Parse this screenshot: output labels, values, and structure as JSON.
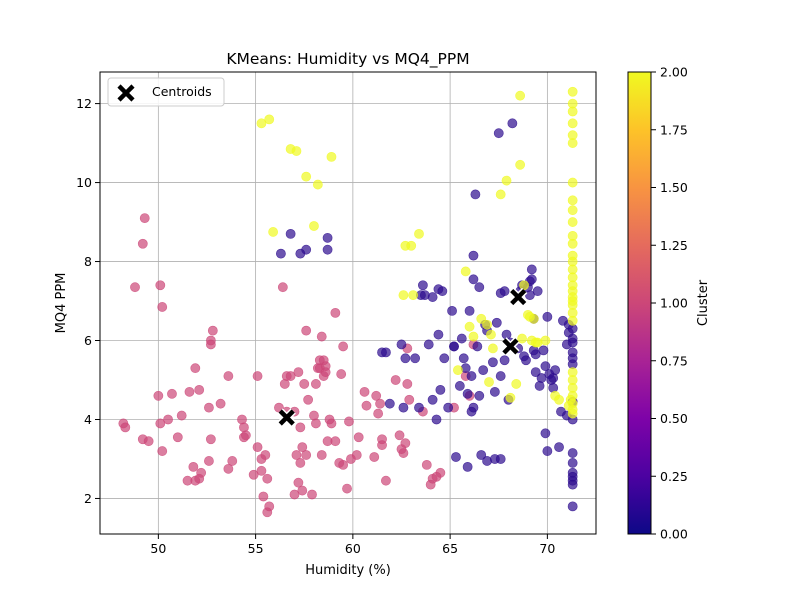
{
  "chart_data": {
    "type": "scatter",
    "title": "KMeans: Humidity vs MQ4_PPM",
    "xlabel": "Humidity (%)",
    "ylabel": "MQ4 PPM",
    "xlim": [
      47,
      72.5
    ],
    "ylim": [
      1.1,
      12.8
    ],
    "xticks": [
      50,
      55,
      60,
      65,
      70
    ],
    "yticks": [
      2,
      4,
      6,
      8,
      10,
      12
    ],
    "grid": true,
    "legend": {
      "position": "top-left",
      "entries": [
        "Centroids"
      ]
    },
    "colorbar": {
      "label": "Cluster",
      "range": [
        0,
        2
      ],
      "ticks": [
        "0.00",
        "0.25",
        "0.50",
        "0.75",
        "1.00",
        "1.25",
        "1.50",
        "1.75",
        "2.00"
      ],
      "colormap": "plasma"
    },
    "cluster_colors": {
      "0": "#2d0d8f",
      "1": "#cc4778",
      "2": "#f0f921"
    },
    "centroids": [
      [
        68.5,
        7.1
      ],
      [
        68.1,
        5.85
      ],
      [
        56.6,
        4.05
      ]
    ],
    "clusters": [
      {
        "cluster": 1,
        "points": [
          [
            48.2,
            3.9
          ],
          [
            48.3,
            3.8
          ],
          [
            48.8,
            7.35
          ],
          [
            49.2,
            3.5
          ],
          [
            49.2,
            8.45
          ],
          [
            49.3,
            9.1
          ],
          [
            49.5,
            3.45
          ],
          [
            50.0,
            4.6
          ],
          [
            50.1,
            3.9
          ],
          [
            50.1,
            7.4
          ],
          [
            50.2,
            6.85
          ],
          [
            50.2,
            3.2
          ],
          [
            50.5,
            4.0
          ],
          [
            50.7,
            4.65
          ],
          [
            51.0,
            3.55
          ],
          [
            51.2,
            4.1
          ],
          [
            51.5,
            2.45
          ],
          [
            51.6,
            4.7
          ],
          [
            51.8,
            2.8
          ],
          [
            51.9,
            5.3
          ],
          [
            51.9,
            2.45
          ],
          [
            52.1,
            4.75
          ],
          [
            52.1,
            2.5
          ],
          [
            52.2,
            2.65
          ],
          [
            52.6,
            4.3
          ],
          [
            52.6,
            2.95
          ],
          [
            52.7,
            5.9
          ],
          [
            52.7,
            6.0
          ],
          [
            52.7,
            3.5
          ],
          [
            52.8,
            6.25
          ],
          [
            53.2,
            4.4
          ],
          [
            53.6,
            2.75
          ],
          [
            53.6,
            5.1
          ],
          [
            53.8,
            2.95
          ],
          [
            54.3,
            4.0
          ],
          [
            54.4,
            3.55
          ],
          [
            54.4,
            3.8
          ],
          [
            54.5,
            3.6
          ],
          [
            54.9,
            2.6
          ],
          [
            55.1,
            3.3
          ],
          [
            55.1,
            5.1
          ],
          [
            55.3,
            2.7
          ],
          [
            55.3,
            3.0
          ],
          [
            55.4,
            2.05
          ],
          [
            55.5,
            3.1
          ],
          [
            55.6,
            2.5
          ],
          [
            55.6,
            1.65
          ],
          [
            55.7,
            1.8
          ],
          [
            56.2,
            4.3
          ],
          [
            56.4,
            7.35
          ],
          [
            56.5,
            4.9
          ],
          [
            56.6,
            4.2
          ],
          [
            56.6,
            5.1
          ],
          [
            56.8,
            5.1
          ],
          [
            57.0,
            4.2
          ],
          [
            57.0,
            2.1
          ],
          [
            57.1,
            3.1
          ],
          [
            57.2,
            2.4
          ],
          [
            57.2,
            5.2
          ],
          [
            57.3,
            3.8
          ],
          [
            57.3,
            2.9
          ],
          [
            57.4,
            3.3
          ],
          [
            57.4,
            2.2
          ],
          [
            57.5,
            4.9
          ],
          [
            57.6,
            6.25
          ],
          [
            57.6,
            3.1
          ],
          [
            57.7,
            4.5
          ],
          [
            57.9,
            2.1
          ],
          [
            58.0,
            4.1
          ],
          [
            58.1,
            3.9
          ],
          [
            58.1,
            4.9
          ],
          [
            58.2,
            5.3
          ],
          [
            58.3,
            5.5
          ],
          [
            58.3,
            5.3
          ],
          [
            58.4,
            6.1
          ],
          [
            58.4,
            3.1
          ],
          [
            58.5,
            5.5
          ],
          [
            58.5,
            5.1
          ],
          [
            58.6,
            5.2
          ],
          [
            58.6,
            5.35
          ],
          [
            58.7,
            3.45
          ],
          [
            58.8,
            4.0
          ],
          [
            58.9,
            3.9
          ],
          [
            59.1,
            6.7
          ],
          [
            59.1,
            3.45
          ],
          [
            59.3,
            2.9
          ],
          [
            59.4,
            5.15
          ],
          [
            59.5,
            5.85
          ],
          [
            59.5,
            2.85
          ],
          [
            59.7,
            2.25
          ],
          [
            59.8,
            3.95
          ],
          [
            59.9,
            3.0
          ],
          [
            60.2,
            3.1
          ],
          [
            60.3,
            3.55
          ],
          [
            60.6,
            4.7
          ],
          [
            60.7,
            4.35
          ],
          [
            61.1,
            3.05
          ],
          [
            61.2,
            4.6
          ],
          [
            61.3,
            4.15
          ],
          [
            61.4,
            4.4
          ],
          [
            61.5,
            3.5
          ],
          [
            61.5,
            3.35
          ],
          [
            61.7,
            2.45
          ],
          [
            62.2,
            5.0
          ],
          [
            62.4,
            3.6
          ],
          [
            62.5,
            3.25
          ],
          [
            62.6,
            3.15
          ],
          [
            62.7,
            3.4
          ],
          [
            62.8,
            4.9
          ],
          [
            62.8,
            5.8
          ],
          [
            62.9,
            4.5
          ],
          [
            63.6,
            4.2
          ],
          [
            63.8,
            2.85
          ],
          [
            64.0,
            2.35
          ],
          [
            64.1,
            2.5
          ],
          [
            64.3,
            2.55
          ],
          [
            64.5,
            2.65
          ],
          [
            65.2,
            4.3
          ],
          [
            65.8,
            5.1
          ],
          [
            66.0,
            4.6
          ],
          [
            66.2,
            5.9
          ]
        ]
      },
      {
        "cluster": 0,
        "points": [
          [
            56.3,
            8.2
          ],
          [
            56.8,
            8.7
          ],
          [
            57.3,
            8.2
          ],
          [
            57.6,
            8.3
          ],
          [
            58.7,
            8.6
          ],
          [
            58.7,
            8.3
          ],
          [
            61.5,
            5.7
          ],
          [
            61.7,
            5.7
          ],
          [
            61.9,
            4.4
          ],
          [
            62.5,
            5.9
          ],
          [
            62.6,
            4.3
          ],
          [
            62.7,
            5.55
          ],
          [
            63.2,
            5.55
          ],
          [
            63.4,
            4.3
          ],
          [
            63.5,
            7.15
          ],
          [
            63.6,
            7.4
          ],
          [
            63.7,
            7.15
          ],
          [
            63.9,
            5.9
          ],
          [
            64.1,
            7.1
          ],
          [
            64.1,
            4.5
          ],
          [
            64.3,
            4.0
          ],
          [
            64.4,
            6.15
          ],
          [
            64.4,
            7.3
          ],
          [
            64.5,
            4.75
          ],
          [
            64.6,
            7.25
          ],
          [
            64.7,
            5.55
          ],
          [
            64.9,
            4.3
          ],
          [
            65.1,
            6.75
          ],
          [
            65.2,
            5.85
          ],
          [
            65.2,
            5.85
          ],
          [
            65.3,
            3.05
          ],
          [
            65.5,
            4.85
          ],
          [
            65.6,
            6.05
          ],
          [
            65.7,
            5.55
          ],
          [
            65.8,
            5.3
          ],
          [
            65.9,
            2.8
          ],
          [
            65.9,
            4.65
          ],
          [
            66.0,
            6.75
          ],
          [
            66.1,
            5.1
          ],
          [
            66.1,
            4.2
          ],
          [
            66.2,
            7.55
          ],
          [
            66.2,
            8.15
          ],
          [
            66.2,
            4.3
          ],
          [
            66.3,
            9.7
          ],
          [
            66.4,
            5.85
          ],
          [
            66.5,
            4.6
          ],
          [
            66.5,
            7.35
          ],
          [
            66.6,
            3.1
          ],
          [
            66.7,
            5.25
          ],
          [
            66.8,
            6.4
          ],
          [
            66.9,
            6.25
          ],
          [
            66.9,
            2.95
          ],
          [
            67.2,
            5.45
          ],
          [
            67.3,
            4.7
          ],
          [
            67.3,
            3.0
          ],
          [
            67.4,
            6.45
          ],
          [
            67.5,
            11.25
          ],
          [
            67.6,
            7.2
          ],
          [
            67.6,
            5.1
          ],
          [
            67.6,
            3.0
          ],
          [
            67.8,
            7.25
          ],
          [
            67.8,
            5.5
          ],
          [
            67.9,
            6.15
          ],
          [
            68.0,
            4.5
          ],
          [
            68.1,
            5.95
          ],
          [
            68.2,
            11.5
          ],
          [
            68.5,
            5.8
          ],
          [
            68.6,
            7.25
          ],
          [
            68.7,
            7.4
          ],
          [
            68.8,
            5.6
          ],
          [
            68.9,
            5.5
          ],
          [
            69.0,
            7.35
          ],
          [
            69.1,
            7.15
          ],
          [
            69.1,
            7.5
          ],
          [
            69.2,
            7.8
          ],
          [
            69.2,
            7.55
          ],
          [
            69.3,
            5.75
          ],
          [
            69.3,
            6.55
          ],
          [
            69.4,
            5.65
          ],
          [
            69.4,
            5.2
          ],
          [
            69.5,
            7.25
          ],
          [
            69.6,
            4.85
          ],
          [
            69.7,
            5.05
          ],
          [
            69.8,
            5.75
          ],
          [
            69.9,
            3.65
          ],
          [
            69.9,
            5.35
          ],
          [
            70.0,
            6.6
          ],
          [
            70.0,
            3.2
          ],
          [
            70.1,
            5.15
          ],
          [
            70.2,
            5.0
          ],
          [
            70.3,
            5.05
          ],
          [
            70.3,
            4.8
          ],
          [
            70.4,
            5.25
          ],
          [
            70.6,
            3.3
          ],
          [
            70.7,
            4.2
          ],
          [
            70.8,
            6.5
          ],
          [
            71.0,
            4.1
          ],
          [
            71.0,
            5.9
          ],
          [
            71.1,
            6.2
          ],
          [
            71.1,
            6.4
          ],
          [
            71.3,
            5.7
          ],
          [
            71.3,
            5.55
          ],
          [
            71.3,
            5.4
          ],
          [
            71.3,
            5.95
          ],
          [
            71.3,
            6.05
          ],
          [
            71.3,
            4.45
          ],
          [
            71.3,
            4.0
          ],
          [
            71.3,
            3.15
          ],
          [
            71.3,
            2.9
          ],
          [
            71.3,
            2.65
          ],
          [
            71.3,
            2.45
          ],
          [
            71.3,
            2.35
          ],
          [
            71.3,
            2.55
          ],
          [
            71.3,
            1.8
          ],
          [
            71.3,
            6.3
          ]
        ]
      },
      {
        "cluster": 2,
        "points": [
          [
            55.3,
            11.5
          ],
          [
            55.7,
            11.6
          ],
          [
            55.9,
            8.75
          ],
          [
            56.8,
            10.85
          ],
          [
            57.1,
            10.8
          ],
          [
            57.6,
            10.15
          ],
          [
            58.0,
            8.9
          ],
          [
            58.2,
            9.95
          ],
          [
            58.9,
            10.65
          ],
          [
            62.6,
            7.15
          ],
          [
            62.7,
            8.4
          ],
          [
            63.0,
            8.4
          ],
          [
            63.1,
            7.15
          ],
          [
            63.4,
            8.7
          ],
          [
            65.4,
            5.25
          ],
          [
            65.8,
            7.75
          ],
          [
            66.0,
            6.35
          ],
          [
            66.2,
            6.1
          ],
          [
            66.6,
            6.55
          ],
          [
            66.9,
            6.4
          ],
          [
            67.0,
            4.95
          ],
          [
            67.1,
            6.15
          ],
          [
            67.2,
            5.8
          ],
          [
            67.6,
            9.7
          ],
          [
            67.9,
            10.05
          ],
          [
            68.1,
            4.55
          ],
          [
            68.4,
            4.9
          ],
          [
            68.6,
            12.2
          ],
          [
            68.6,
            10.45
          ],
          [
            68.7,
            6.05
          ],
          [
            68.8,
            7.4
          ],
          [
            69.0,
            6.65
          ],
          [
            69.1,
            6.6
          ],
          [
            69.2,
            6.0
          ],
          [
            69.3,
            6.55
          ],
          [
            69.4,
            5.95
          ],
          [
            69.5,
            5.95
          ],
          [
            69.9,
            6.0
          ],
          [
            70.4,
            4.6
          ],
          [
            70.6,
            4.5
          ],
          [
            71.3,
            12.3
          ],
          [
            71.3,
            12.0
          ],
          [
            71.3,
            11.8
          ],
          [
            71.3,
            11.5
          ],
          [
            71.3,
            11.2
          ],
          [
            71.3,
            11.0
          ],
          [
            71.3,
            10.0
          ],
          [
            71.3,
            9.55
          ],
          [
            71.3,
            9.3
          ],
          [
            71.3,
            9.0
          ],
          [
            71.3,
            8.65
          ],
          [
            71.3,
            8.45
          ],
          [
            71.3,
            8.15
          ],
          [
            71.3,
            8.0
          ],
          [
            71.3,
            7.8
          ],
          [
            71.3,
            7.6
          ],
          [
            71.3,
            7.4
          ],
          [
            71.3,
            7.25
          ],
          [
            71.3,
            7.1
          ],
          [
            71.3,
            6.9
          ],
          [
            71.3,
            6.7
          ],
          [
            71.3,
            6.5
          ],
          [
            71.3,
            5.2
          ],
          [
            71.3,
            5.0
          ],
          [
            71.3,
            4.8
          ],
          [
            71.3,
            4.6
          ],
          [
            71.3,
            4.4
          ],
          [
            71.3,
            4.25
          ],
          [
            71.3,
            4.15
          ],
          [
            71.3,
            7.0
          ],
          [
            71.2,
            4.5
          ],
          [
            71.1,
            4.35
          ]
        ]
      }
    ]
  }
}
